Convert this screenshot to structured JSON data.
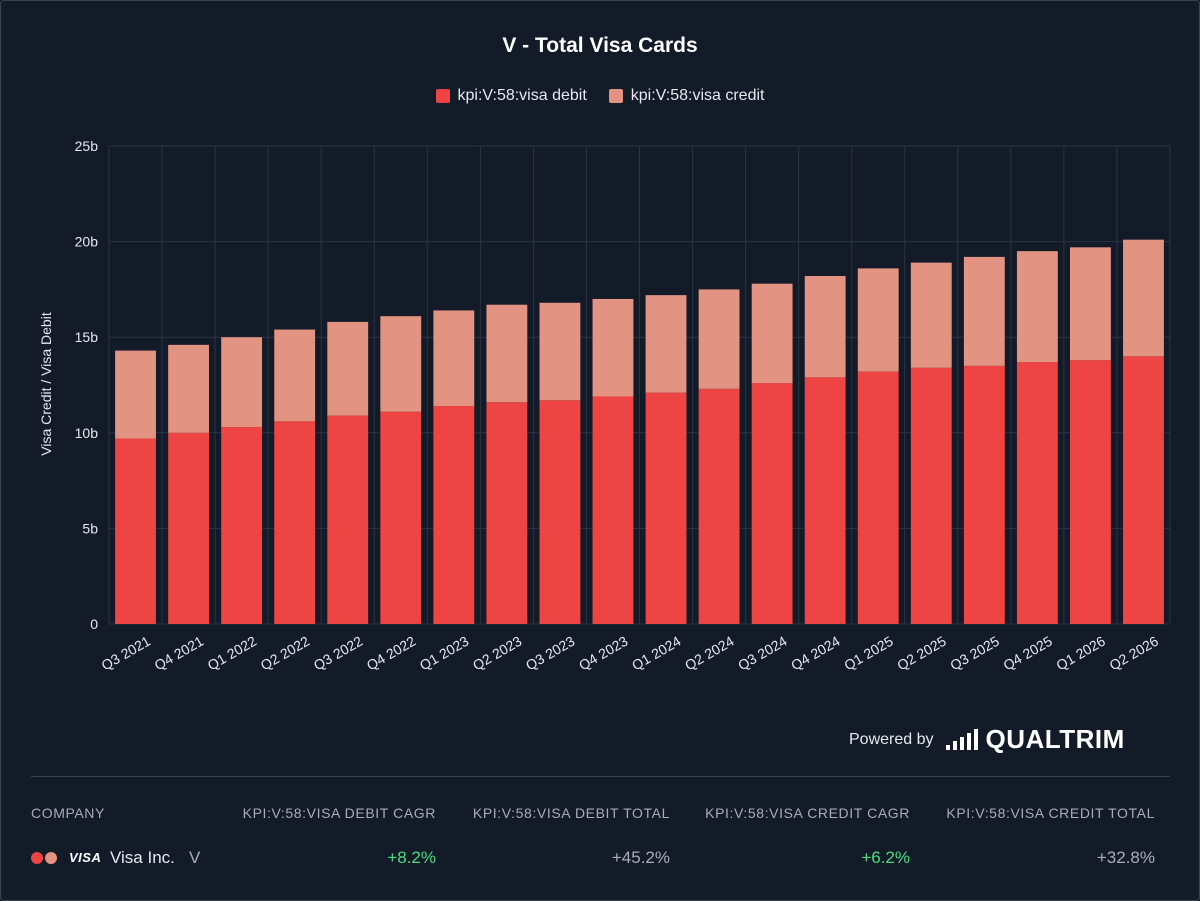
{
  "chart_data": {
    "type": "bar",
    "stacked": true,
    "title": "V - Total Visa Cards",
    "ylabel": "Visa Credit / Visa Debit",
    "xlabel": "",
    "ylim": [
      0,
      25
    ],
    "y_ticks": [
      "0",
      "5b",
      "10b",
      "15b",
      "20b",
      "25b"
    ],
    "grid": true,
    "legend_position": "top",
    "categories": [
      "Q3 2021",
      "Q4 2021",
      "Q1 2022",
      "Q2 2022",
      "Q3 2022",
      "Q4 2022",
      "Q1 2023",
      "Q2 2023",
      "Q3 2023",
      "Q4 2023",
      "Q1 2024",
      "Q2 2024",
      "Q3 2024",
      "Q4 2024",
      "Q1 2025",
      "Q2 2025",
      "Q3 2025",
      "Q4 2025",
      "Q1 2026",
      "Q2 2026"
    ],
    "series": [
      {
        "name": "kpi:V:58:visa debit",
        "color": "#ef4444",
        "values": [
          9.7,
          10.0,
          10.3,
          10.6,
          10.9,
          11.1,
          11.4,
          11.6,
          11.7,
          11.9,
          12.1,
          12.3,
          12.6,
          12.9,
          13.2,
          13.4,
          13.5,
          13.7,
          13.8,
          14.0
        ]
      },
      {
        "name": "kpi:V:58:visa credit",
        "color": "#e39382",
        "values": [
          4.6,
          4.6,
          4.7,
          4.8,
          4.9,
          5.0,
          5.0,
          5.1,
          5.1,
          5.1,
          5.1,
          5.2,
          5.2,
          5.3,
          5.4,
          5.5,
          5.7,
          5.8,
          5.9,
          6.1
        ]
      }
    ]
  },
  "powered_by": {
    "text": "Powered by",
    "brand": "QUALTRIM"
  },
  "table": {
    "headers": [
      "COMPANY",
      "KPI:V:58:VISA DEBIT CAGR",
      "KPI:V:58:VISA DEBIT TOTAL",
      "KPI:V:58:VISA CREDIT CAGR",
      "KPI:V:58:VISA CREDIT TOTAL"
    ],
    "row": {
      "logo_text": "VISA",
      "company": "Visa Inc.",
      "ticker": "V",
      "debit_cagr": "+8.2%",
      "debit_total": "+45.2%",
      "credit_cagr": "+6.2%",
      "credit_total": "+32.8%"
    }
  },
  "colors": {
    "positive": "#4ade80",
    "neutral": "#a8adb8"
  }
}
